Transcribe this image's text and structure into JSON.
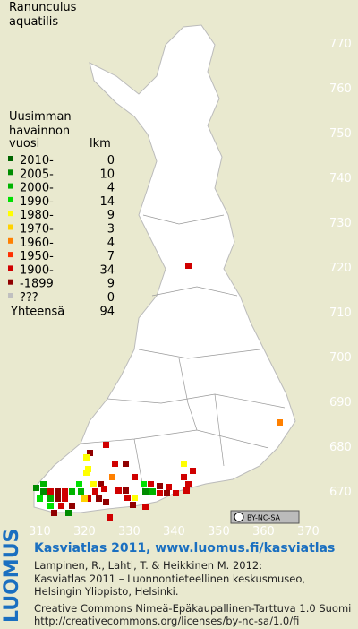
{
  "title": [
    "Ranunculus",
    "aquatilis"
  ],
  "legend": {
    "header": [
      "Uusimman",
      "havainnon",
      "vuosi"
    ],
    "count_header": "lkm",
    "rows": [
      {
        "label": "2010-",
        "count": 0,
        "color": "#006400"
      },
      {
        "label": "2005-",
        "count": 10,
        "color": "#008c00"
      },
      {
        "label": "2000-",
        "count": 4,
        "color": "#00b400"
      },
      {
        "label": "1990-",
        "count": 14,
        "color": "#00e000"
      },
      {
        "label": "1980-",
        "count": 9,
        "color": "#ffff00"
      },
      {
        "label": "1970-",
        "count": 3,
        "color": "#ffd200"
      },
      {
        "label": "1960-",
        "count": 4,
        "color": "#ff8000"
      },
      {
        "label": "1950-",
        "count": 7,
        "color": "#ff3000"
      },
      {
        "label": "1900-",
        "count": 34,
        "color": "#d00000"
      },
      {
        "label": "-1899",
        "count": 9,
        "color": "#900000"
      },
      {
        "label": "???",
        "count": 0,
        "color": "#c0c0c0"
      }
    ],
    "total_label": "Yhteensä",
    "total": 94
  },
  "grid": {
    "y_labels": [
      770,
      760,
      750,
      740,
      730,
      720,
      710,
      700,
      690,
      680,
      670
    ],
    "x_labels": [
      310,
      320,
      330,
      340,
      350,
      360,
      370
    ]
  },
  "license_badge": "BY-NC-SA",
  "footer": {
    "logo": "LUOMUS",
    "headline": "Kasviatlas 2011, www.luomus.fi/kasviatlas",
    "lines": [
      "Lampinen, R., Lahti, T. & Heikkinen M. 2012:",
      "Kasviatlas 2011 – Luonnontieteellinen keskusmuseo,",
      "Helsingin Yliopisto, Helsinki."
    ],
    "license": [
      "Creative Commons Nimeä-Epäkaupallinen-Tarttuva 1.0 Suomi",
      "http://creativecommons.org/licenses/by-nc-sa/1.0/fi"
    ]
  }
}
